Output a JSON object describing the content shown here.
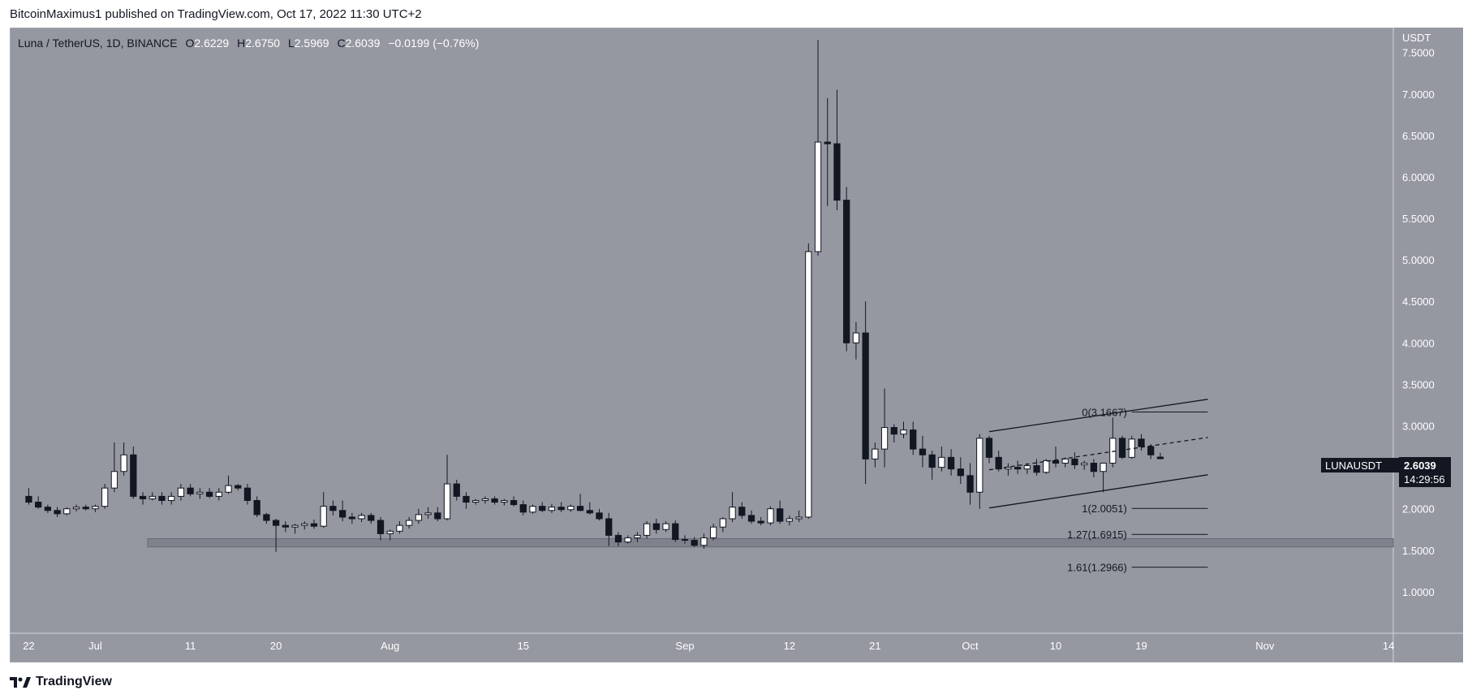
{
  "header": {
    "text": "BitcoinMaximus1 published on TradingView.com, Oct 17, 2022 11:30 UTC+2"
  },
  "footer": {
    "brand": "TradingView"
  },
  "legend": {
    "symbol": "Luna / TetherUS, 1D, BINANCE",
    "o_label": "O",
    "o": "2.6229",
    "h_label": "H",
    "h": "2.6750",
    "l_label": "L",
    "l": "2.5969",
    "c_label": "C",
    "c": "2.6039",
    "change": "−0.0199 (−0.76%)"
  },
  "price_axis": {
    "unit": "USDT",
    "ticks": [
      "7.5000",
      "7.0000",
      "6.5000",
      "6.0000",
      "5.5000",
      "5.0000",
      "4.5000",
      "4.0000",
      "3.5000",
      "3.0000",
      "2.5000",
      "2.0000",
      "1.5000",
      "1.0000"
    ]
  },
  "time_axis": {
    "ticks": [
      "22",
      "Jul",
      "11",
      "20",
      "Aug",
      "15",
      "Sep",
      "12",
      "21",
      "Oct",
      "10",
      "19",
      "Nov",
      "14"
    ],
    "tick_days": [
      0,
      7,
      17,
      26,
      38,
      52,
      69,
      80,
      89,
      99,
      108,
      117,
      130,
      143
    ]
  },
  "last_price": {
    "symbol": "LUNAUSDT",
    "price": "2.6039",
    "countdown": "14:29:56"
  },
  "fib_levels": [
    {
      "label": "0(3.1667)",
      "value": 3.1667
    },
    {
      "label": "1(2.0051)",
      "value": 2.0051
    },
    {
      "label": "1.27(1.6915)",
      "value": 1.6915
    },
    {
      "label": "1.61(1.2966)",
      "value": 1.2966
    }
  ],
  "colors": {
    "chart_bg": "#9598a1",
    "up": "#ffffff",
    "down": "#131722",
    "support_zone": "#787b86",
    "axis_text": "#ffffff",
    "label_bg": "#131722"
  },
  "chart_data": {
    "type": "candlestick",
    "symbol": "LUNAUSDT",
    "interval": "1D",
    "ylim": [
      0.5,
      7.8
    ],
    "x_range_days": [
      -2,
      143.5
    ],
    "first_candle": "Jun 22, 2022",
    "candles": [
      [
        2.15,
        2.25,
        2.05,
        2.08
      ],
      [
        2.08,
        2.15,
        2.0,
        2.02
      ],
      [
        2.02,
        2.05,
        1.95,
        1.98
      ],
      [
        1.98,
        2.02,
        1.9,
        1.94
      ],
      [
        1.94,
        2.02,
        1.92,
        2.0
      ],
      [
        2.0,
        2.05,
        1.97,
        2.02
      ],
      [
        2.02,
        2.05,
        1.98,
        2.0
      ],
      [
        2.0,
        2.05,
        1.96,
        2.03
      ],
      [
        2.03,
        2.3,
        2.0,
        2.25
      ],
      [
        2.25,
        2.8,
        2.2,
        2.45
      ],
      [
        2.45,
        2.8,
        2.4,
        2.65
      ],
      [
        2.65,
        2.75,
        2.12,
        2.15
      ],
      [
        2.15,
        2.2,
        2.05,
        2.12
      ],
      [
        2.12,
        2.2,
        2.1,
        2.15
      ],
      [
        2.15,
        2.2,
        2.05,
        2.1
      ],
      [
        2.1,
        2.2,
        2.05,
        2.15
      ],
      [
        2.15,
        2.3,
        2.1,
        2.25
      ],
      [
        2.25,
        2.3,
        2.15,
        2.18
      ],
      [
        2.18,
        2.25,
        2.12,
        2.2
      ],
      [
        2.2,
        2.25,
        2.13,
        2.15
      ],
      [
        2.15,
        2.25,
        2.1,
        2.2
      ],
      [
        2.2,
        2.4,
        2.18,
        2.28
      ],
      [
        2.28,
        2.3,
        2.22,
        2.25
      ],
      [
        2.25,
        2.3,
        2.05,
        2.1
      ],
      [
        2.1,
        2.15,
        1.9,
        1.93
      ],
      [
        1.93,
        1.95,
        1.82,
        1.86
      ],
      [
        1.86,
        1.88,
        1.48,
        1.8
      ],
      [
        1.8,
        1.85,
        1.72,
        1.78
      ],
      [
        1.78,
        1.82,
        1.7,
        1.8
      ],
      [
        1.8,
        1.85,
        1.75,
        1.82
      ],
      [
        1.82,
        1.87,
        1.76,
        1.79
      ],
      [
        1.79,
        2.2,
        1.77,
        2.03
      ],
      [
        2.03,
        2.1,
        1.92,
        1.98
      ],
      [
        1.98,
        2.1,
        1.85,
        1.9
      ],
      [
        1.9,
        1.95,
        1.82,
        1.88
      ],
      [
        1.88,
        1.95,
        1.84,
        1.92
      ],
      [
        1.92,
        1.95,
        1.82,
        1.86
      ],
      [
        1.86,
        1.9,
        1.62,
        1.7
      ],
      [
        1.7,
        1.75,
        1.62,
        1.73
      ],
      [
        1.73,
        1.85,
        1.7,
        1.8
      ],
      [
        1.8,
        1.9,
        1.76,
        1.86
      ],
      [
        1.86,
        2.0,
        1.82,
        1.93
      ],
      [
        1.93,
        2.02,
        1.88,
        1.95
      ],
      [
        1.95,
        2.02,
        1.85,
        1.88
      ],
      [
        1.88,
        2.65,
        1.86,
        2.3
      ],
      [
        2.3,
        2.35,
        2.1,
        2.15
      ],
      [
        2.15,
        2.2,
        2.0,
        2.08
      ],
      [
        2.08,
        2.12,
        2.05,
        2.1
      ],
      [
        2.1,
        2.15,
        2.06,
        2.12
      ],
      [
        2.12,
        2.15,
        2.05,
        2.08
      ],
      [
        2.08,
        2.12,
        2.04,
        2.1
      ],
      [
        2.1,
        2.15,
        2.03,
        2.05
      ],
      [
        2.05,
        2.1,
        1.92,
        1.96
      ],
      [
        1.96,
        2.05,
        1.94,
        2.03
      ],
      [
        2.03,
        2.08,
        1.96,
        1.98
      ],
      [
        1.98,
        2.06,
        1.95,
        2.02
      ],
      [
        2.02,
        2.08,
        1.96,
        1.99
      ],
      [
        1.99,
        2.05,
        1.96,
        2.03
      ],
      [
        2.03,
        2.18,
        1.97,
        1.98
      ],
      [
        1.98,
        2.08,
        1.93,
        1.95
      ],
      [
        1.95,
        2.0,
        1.86,
        1.88
      ],
      [
        1.88,
        1.95,
        1.55,
        1.68
      ],
      [
        1.68,
        1.72,
        1.55,
        1.6
      ],
      [
        1.6,
        1.68,
        1.58,
        1.65
      ],
      [
        1.65,
        1.72,
        1.6,
        1.68
      ],
      [
        1.68,
        1.85,
        1.64,
        1.82
      ],
      [
        1.82,
        1.88,
        1.7,
        1.75
      ],
      [
        1.75,
        1.85,
        1.72,
        1.82
      ],
      [
        1.82,
        1.86,
        1.6,
        1.63
      ],
      [
        1.63,
        1.68,
        1.58,
        1.62
      ],
      [
        1.62,
        1.66,
        1.54,
        1.56
      ],
      [
        1.56,
        1.7,
        1.52,
        1.65
      ],
      [
        1.65,
        1.82,
        1.62,
        1.78
      ],
      [
        1.78,
        1.9,
        1.72,
        1.88
      ],
      [
        1.88,
        2.2,
        1.84,
        2.02
      ],
      [
        2.02,
        2.08,
        1.88,
        1.92
      ],
      [
        1.92,
        1.98,
        1.82,
        1.85
      ],
      [
        1.85,
        1.9,
        1.8,
        1.83
      ],
      [
        1.83,
        2.03,
        1.8,
        2.0
      ],
      [
        2.0,
        2.1,
        1.82,
        1.85
      ],
      [
        1.85,
        1.92,
        1.8,
        1.88
      ],
      [
        1.88,
        1.98,
        1.84,
        1.9
      ],
      [
        1.9,
        5.2,
        1.88,
        5.1
      ],
      [
        5.1,
        7.65,
        5.05,
        6.42
      ],
      [
        6.42,
        6.95,
        5.65,
        6.4
      ],
      [
        6.4,
        7.05,
        5.6,
        5.72
      ],
      [
        5.72,
        5.88,
        3.9,
        4.0
      ],
      [
        4.0,
        4.25,
        3.8,
        4.12
      ],
      [
        4.12,
        4.5,
        2.3,
        2.6
      ],
      [
        2.6,
        2.8,
        2.5,
        2.72
      ],
      [
        2.72,
        3.45,
        2.5,
        2.98
      ],
      [
        2.98,
        3.02,
        2.8,
        2.9
      ],
      [
        2.9,
        3.05,
        2.85,
        2.95
      ],
      [
        2.95,
        3.05,
        2.65,
        2.72
      ],
      [
        2.72,
        2.88,
        2.5,
        2.65
      ],
      [
        2.65,
        2.7,
        2.35,
        2.5
      ],
      [
        2.5,
        2.75,
        2.45,
        2.62
      ],
      [
        2.62,
        2.72,
        2.4,
        2.48
      ],
      [
        2.48,
        2.62,
        2.3,
        2.4
      ],
      [
        2.4,
        2.55,
        2.05,
        2.2
      ],
      [
        2.2,
        2.9,
        2.0,
        2.85
      ],
      [
        2.85,
        2.88,
        2.55,
        2.62
      ],
      [
        2.62,
        2.7,
        2.45,
        2.48
      ],
      [
        2.48,
        2.55,
        2.4,
        2.5
      ],
      [
        2.5,
        2.58,
        2.42,
        2.48
      ],
      [
        2.48,
        2.55,
        2.42,
        2.52
      ],
      [
        2.52,
        2.6,
        2.4,
        2.44
      ],
      [
        2.44,
        2.6,
        2.42,
        2.58
      ],
      [
        2.58,
        2.75,
        2.5,
        2.55
      ],
      [
        2.55,
        2.62,
        2.5,
        2.6
      ],
      [
        2.6,
        2.68,
        2.48,
        2.53
      ],
      [
        2.53,
        2.58,
        2.47,
        2.55
      ],
      [
        2.55,
        2.6,
        2.38,
        2.45
      ],
      [
        2.45,
        2.55,
        2.2,
        2.55
      ],
      [
        2.55,
        3.1,
        2.5,
        2.85
      ],
      [
        2.85,
        2.88,
        2.6,
        2.62
      ],
      [
        2.62,
        2.88,
        2.6,
        2.84
      ],
      [
        2.84,
        2.9,
        2.7,
        2.75
      ],
      [
        2.75,
        2.78,
        2.6,
        2.65
      ],
      [
        2.6229,
        2.675,
        2.5969,
        2.6039
      ]
    ],
    "support_zone": [
      1.54,
      1.64
    ],
    "channel": {
      "upper": [
        [
          101,
          2.93
        ],
        [
          124,
          3.32
        ]
      ],
      "lower": [
        [
          101,
          2.01
        ],
        [
          124,
          2.41
        ]
      ],
      "mid": [
        [
          101,
          2.47
        ],
        [
          124,
          2.86
        ]
      ]
    },
    "fib_x_days": [
      116,
      124
    ],
    "fib_label_right_day": 115.5
  }
}
